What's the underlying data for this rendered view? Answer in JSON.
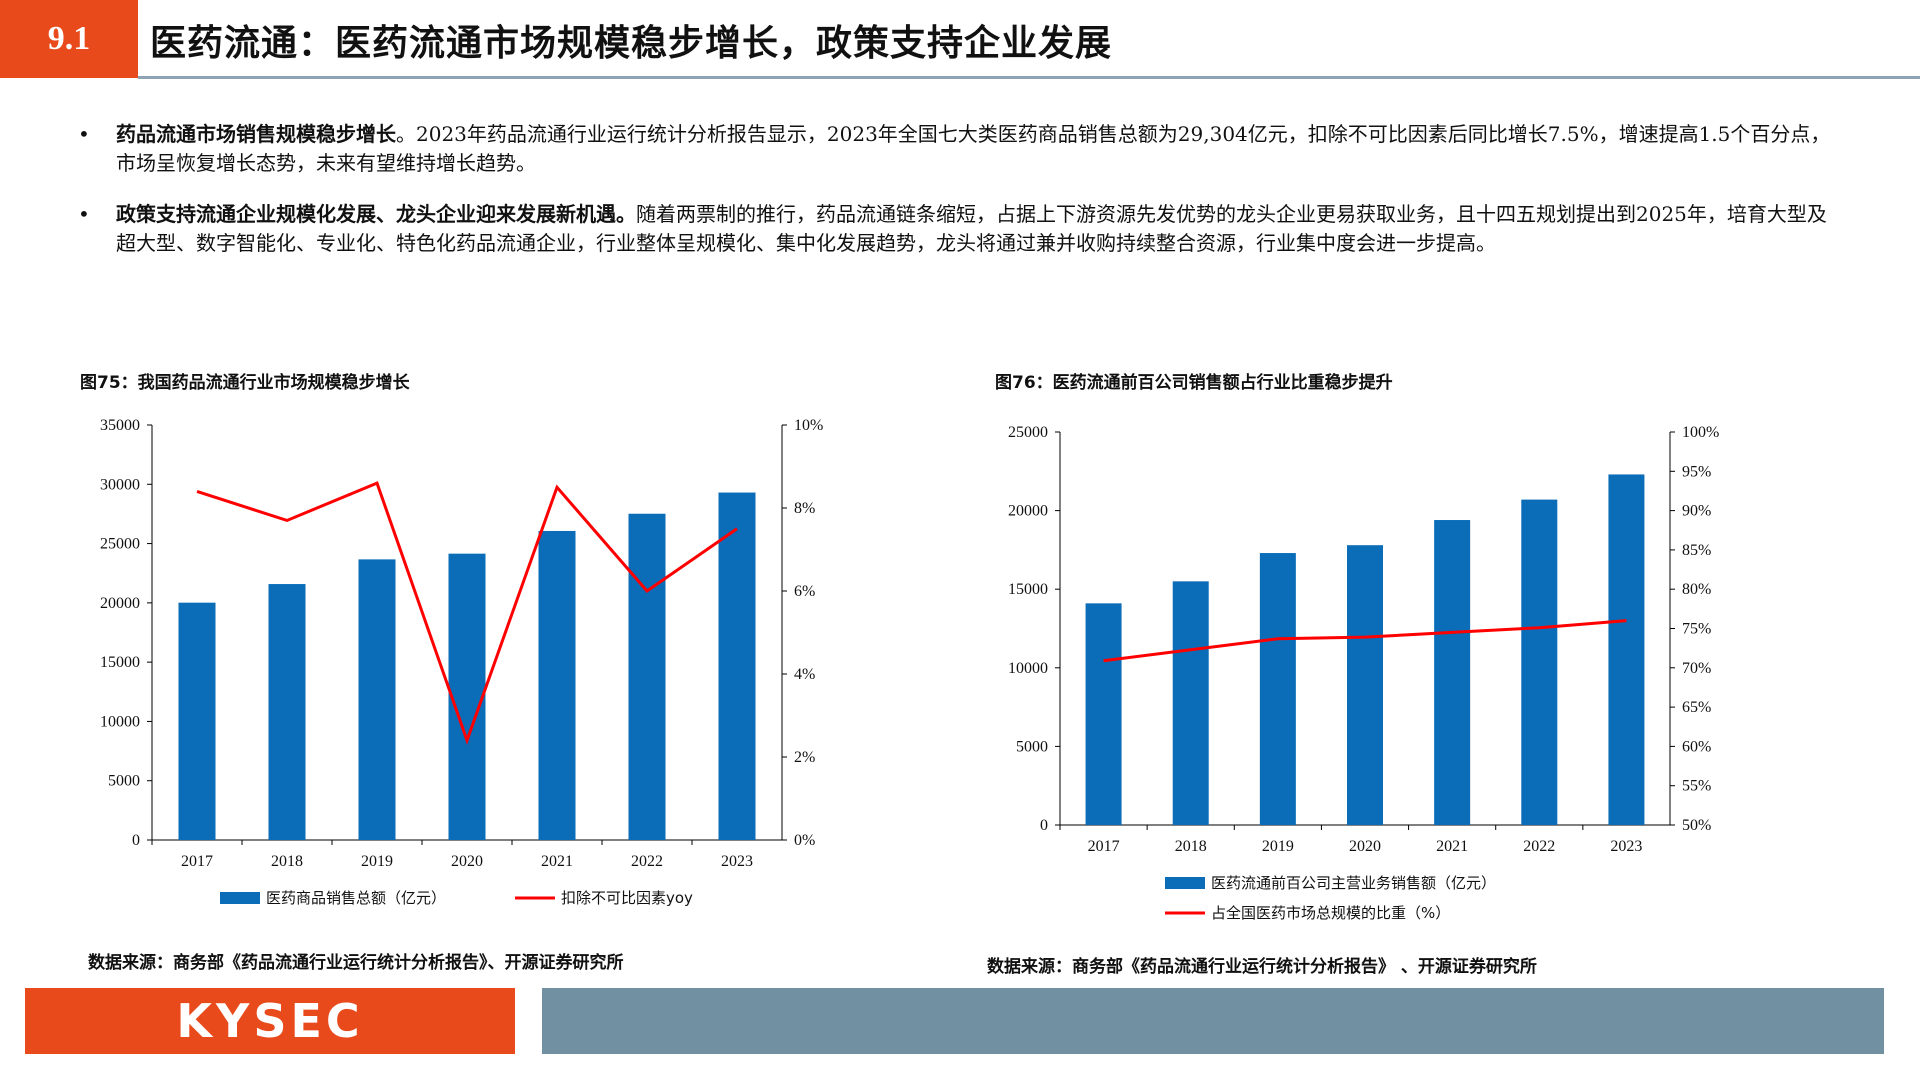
{
  "header": {
    "section_number": "9.1",
    "title": "医药流通：医药流通市场规模稳步增长，政策支持企业发展"
  },
  "bullets": [
    {
      "marker": "•",
      "bold": "药品流通市场销售规模稳步增长",
      "text": "。2023年药品流通行业运行统计分析报告显示，2023年全国七大类医药商品销售总额为29,304亿元，扣除不可比因素后同比增长7.5%，增速提高1.5个百分点，市场呈恢复增长态势，未来有望维持增长趋势。"
    },
    {
      "marker": "•",
      "bold": "政策支持流通企业规模化发展、龙头企业迎来发展新机遇。",
      "text": "随着两票制的推行，药品流通链条缩短，占据上下游资源先发优势的龙头企业更易获取业务，且十四五规划提出到2025年，培育大型及超大型、数字智能化、专业化、特色化药品流通企业，行业整体呈规模化、集中化发展趋势，龙头将通过兼并收购持续整合资源，行业集中度会进一步提高。"
    }
  ],
  "figures": {
    "fig75": {
      "title": "图75：我国药品流通行业市场规模稳步增长",
      "source": "数据来源：商务部《药品流通行业运行统计分析报告》、开源证券研究所"
    },
    "fig76": {
      "title": "图76：医药流通前百公司销售额占行业比重稳步提升",
      "source": "数据来源：商务部《药品流通行业运行统计分析报告》 、开源证券研究所"
    }
  },
  "chart_data": [
    {
      "type": "bar",
      "title": "图75：我国药品流通行业市场规模稳步增长",
      "categories": [
        "2017",
        "2018",
        "2019",
        "2020",
        "2021",
        "2022",
        "2023"
      ],
      "series": [
        {
          "name": "医药商品销售总额（亿元）",
          "type": "bar",
          "axis": "left",
          "color": "#0b6db8",
          "values": [
            20016,
            21586,
            23667,
            24149,
            26064,
            27516,
            29304
          ]
        },
        {
          "name": "扣除不可比因素yoy",
          "type": "line",
          "axis": "right",
          "color": "#ff0000",
          "values": [
            8.4,
            7.7,
            8.6,
            2.4,
            8.5,
            6.0,
            7.5
          ]
        }
      ],
      "ylim_left": [
        0,
        35000
      ],
      "yticks_left": [
        "0",
        "5000",
        "10000",
        "15000",
        "20000",
        "25000",
        "30000",
        "35000"
      ],
      "ylim_right": [
        0,
        10
      ],
      "yticks_right": [
        "0%",
        "2%",
        "4%",
        "6%",
        "8%",
        "10%"
      ],
      "legend_position": "bottom"
    },
    {
      "type": "bar",
      "title": "图76：医药流通前百公司销售额占行业比重稳步提升",
      "categories": [
        "2017",
        "2018",
        "2019",
        "2020",
        "2021",
        "2022",
        "2023"
      ],
      "series": [
        {
          "name": "医药流通前百公司主营业务销售额（亿元）",
          "type": "bar",
          "axis": "left",
          "color": "#0b6db8",
          "values": [
            14100,
            15500,
            17300,
            17800,
            19400,
            20700,
            22300
          ]
        },
        {
          "name": "占全国医药市场总规模的比重（%）",
          "type": "line",
          "axis": "right",
          "color": "#ff0000",
          "values": [
            70.9,
            72.3,
            73.7,
            73.9,
            74.5,
            75.1,
            76.0
          ]
        }
      ],
      "ylim_left": [
        0,
        25000
      ],
      "yticks_left": [
        "0",
        "5000",
        "10000",
        "15000",
        "20000",
        "25000"
      ],
      "ylim_right": [
        50,
        100
      ],
      "yticks_right": [
        "50%",
        "55%",
        "60%",
        "65%",
        "70%",
        "75%",
        "80%",
        "85%",
        "90%",
        "95%",
        "100%"
      ],
      "legend_position": "bottom"
    }
  ],
  "footer": {
    "logo_text": "KYSEC",
    "brand_color": "#e84a1b",
    "bar_color": "#7190a2"
  }
}
